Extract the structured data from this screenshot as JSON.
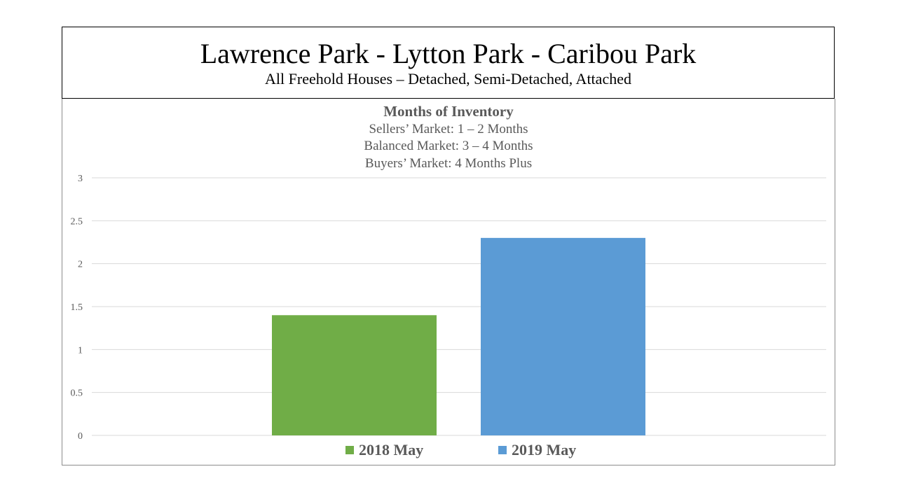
{
  "header": {
    "title": "Lawrence Park - Lytton Park - Caribou Park",
    "subtitle": "All Freehold Houses – Detached, Semi-Detached, Attached"
  },
  "chart_data": {
    "type": "bar",
    "title": "Months of Inventory",
    "subtitle_lines": [
      "Sellers’ Market:  1 – 2 Months",
      "Balanced Market:  3 – 4 Months",
      "Buyers’ Market:  4 Months Plus"
    ],
    "xlabel": "",
    "ylabel": "",
    "ylim": [
      0,
      3
    ],
    "yticks": [
      "0",
      "0.5",
      "1",
      "1.5",
      "2",
      "2.5",
      "3"
    ],
    "grid": true,
    "legend_placement": "bottom",
    "series": [
      {
        "name": "2018 May",
        "values": [
          1.4
        ],
        "color": "#70ad47"
      },
      {
        "name": "2019 May",
        "values": [
          2.3
        ],
        "color": "#5b9bd5"
      }
    ]
  }
}
